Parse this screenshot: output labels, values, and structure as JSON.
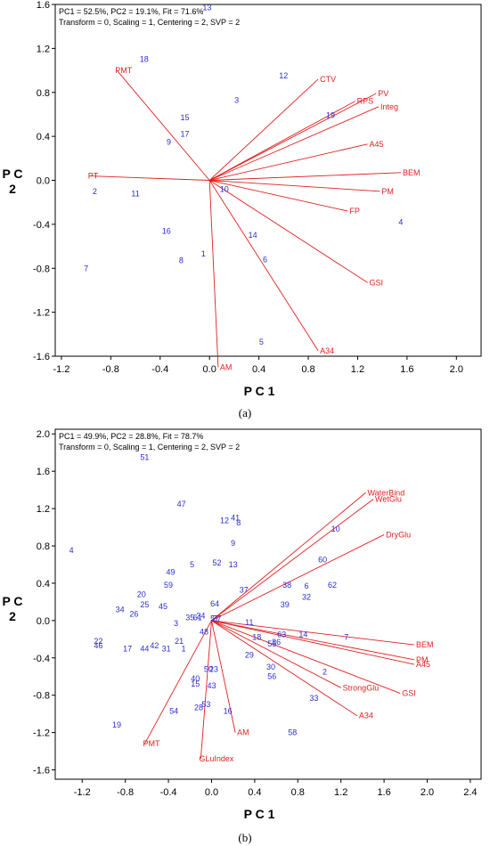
{
  "chart_data": [
    {
      "type": "scatter",
      "panel_label": "(a)",
      "stats": "PC1 = 52.5%, PC2 = 19.1%, Fit = 71.6%",
      "settings": "Transform = 0, Scaling = 1, Centering = 2, SVP = 2",
      "xlabel": "P C 1",
      "ylabel": "P C 2",
      "xlim": [
        -1.25,
        2.2
      ],
      "ylim": [
        -1.6,
        1.6
      ],
      "xticks": [
        -1.2,
        -0.8,
        -0.4,
        0.0,
        0.4,
        0.8,
        1.2,
        1.6,
        2.0
      ],
      "xtick_labels": [
        "-1.2",
        "-0.8",
        "-0.4",
        "0.0",
        "0.4",
        "0.8",
        "1.2",
        "1.6",
        "2.0"
      ],
      "yticks": [
        -1.6,
        -1.2,
        -0.8,
        -0.4,
        0.0,
        0.4,
        0.8,
        1.2,
        1.6
      ],
      "ytick_labels": [
        "-1.6",
        "-1.2",
        "-0.8",
        "-0.4",
        "0.0",
        "0.4",
        "0.8",
        "1.2",
        "1.6"
      ],
      "vectors": [
        {
          "label": "CTV",
          "x": 0.88,
          "y": 0.92
        },
        {
          "label": "RPS",
          "x": 1.18,
          "y": 0.72
        },
        {
          "label": "PV",
          "x": 1.35,
          "y": 0.79
        },
        {
          "label": "Integ",
          "x": 1.37,
          "y": 0.67
        },
        {
          "label": "A45",
          "x": 1.28,
          "y": 0.33
        },
        {
          "label": "BEM",
          "x": 1.55,
          "y": 0.07
        },
        {
          "label": "PM",
          "x": 1.38,
          "y": -0.1
        },
        {
          "label": "FP",
          "x": 1.12,
          "y": -0.28
        },
        {
          "label": "GSI",
          "x": 1.28,
          "y": -0.93
        },
        {
          "label": "A34",
          "x": 0.88,
          "y": -1.55
        },
        {
          "label": "AM",
          "x": 0.07,
          "y": -1.7
        },
        {
          "label": "PT",
          "x": -0.97,
          "y": 0.04
        },
        {
          "label": "PMT",
          "x": -0.75,
          "y": 1.0
        }
      ],
      "observations": [
        {
          "label": "1",
          "x": -0.05,
          "y": -0.67
        },
        {
          "label": "2",
          "x": -0.93,
          "y": -0.1
        },
        {
          "label": "3",
          "x": 0.22,
          "y": 0.73
        },
        {
          "label": "4",
          "x": 1.55,
          "y": -0.38
        },
        {
          "label": "5",
          "x": 0.42,
          "y": -1.47
        },
        {
          "label": "6",
          "x": 0.45,
          "y": -0.72
        },
        {
          "label": "7",
          "x": -1.0,
          "y": -0.8
        },
        {
          "label": "8",
          "x": -0.23,
          "y": -0.73
        },
        {
          "label": "9",
          "x": -0.33,
          "y": 0.35
        },
        {
          "label": "10",
          "x": 0.12,
          "y": -0.08
        },
        {
          "label": "11",
          "x": -0.6,
          "y": -0.12
        },
        {
          "label": "12",
          "x": 0.6,
          "y": 0.95
        },
        {
          "label": "13",
          "x": -0.02,
          "y": 1.57
        },
        {
          "label": "14",
          "x": 0.35,
          "y": -0.5
        },
        {
          "label": "15",
          "x": -0.2,
          "y": 0.57
        },
        {
          "label": "16",
          "x": -0.35,
          "y": -0.46
        },
        {
          "label": "17",
          "x": -0.2,
          "y": 0.42
        },
        {
          "label": "18",
          "x": -0.53,
          "y": 1.1
        },
        {
          "label": "19",
          "x": 0.98,
          "y": 0.59
        }
      ]
    },
    {
      "type": "scatter",
      "panel_label": "(b)",
      "stats": "PC1 = 49.9%, PC2 = 28.8%, Fit = 78.7%",
      "settings": "Transform = 0, Scaling = 1, Centering = 2, SVP = 2",
      "xlabel": "P C 1",
      "ylabel": "P C 2",
      "xlim": [
        -1.45,
        2.5
      ],
      "ylim": [
        -1.7,
        2.05
      ],
      "xticks": [
        -1.2,
        -0.8,
        -0.4,
        0.0,
        0.4,
        0.8,
        1.2,
        1.6,
        2.0,
        2.4
      ],
      "xtick_labels": [
        "-1.2",
        "-0.8",
        "-0.4",
        "0.0",
        "0.4",
        "0.8",
        "1.2",
        "1.6",
        "2.0",
        "2.4"
      ],
      "yticks": [
        -1.6,
        -1.2,
        -0.8,
        -0.4,
        0.0,
        0.4,
        0.8,
        1.2,
        1.6,
        2.0
      ],
      "ytick_labels": [
        "-1.6",
        "-1.2",
        "-0.8",
        "-0.4",
        "0.0",
        "0.4",
        "0.8",
        "1.2",
        "1.6",
        "2.0"
      ],
      "vectors": [
        {
          "label": "WaterBind",
          "x": 1.43,
          "y": 1.37
        },
        {
          "label": "WetGlu",
          "x": 1.5,
          "y": 1.3
        },
        {
          "label": "DryGlu",
          "x": 1.6,
          "y": 0.92
        },
        {
          "label": "BEM",
          "x": 1.88,
          "y": -0.26
        },
        {
          "label": "PM",
          "x": 1.88,
          "y": -0.42
        },
        {
          "label": "A45",
          "x": 1.88,
          "y": -0.47
        },
        {
          "label": "StrongGlu",
          "x": 1.2,
          "y": -0.72
        },
        {
          "label": "GSI",
          "x": 1.75,
          "y": -0.78
        },
        {
          "label": "A34",
          "x": 1.35,
          "y": -1.02
        },
        {
          "label": "AM",
          "x": 0.22,
          "y": -1.2
        },
        {
          "label": "GLuIndex",
          "x": -0.1,
          "y": -1.48
        },
        {
          "label": "PMT",
          "x": -0.62,
          "y": -1.32
        }
      ],
      "observations": [
        {
          "label": "1",
          "x": -0.26,
          "y": -0.3
        },
        {
          "label": "2",
          "x": 1.05,
          "y": -0.55
        },
        {
          "label": "3",
          "x": -0.33,
          "y": -0.03
        },
        {
          "label": "4",
          "x": -1.3,
          "y": 0.75
        },
        {
          "label": "5",
          "x": -0.18,
          "y": 0.6
        },
        {
          "label": "6",
          "x": 0.88,
          "y": 0.37
        },
        {
          "label": "7",
          "x": 1.25,
          "y": -0.18
        },
        {
          "label": "8",
          "x": 0.25,
          "y": 1.05
        },
        {
          "label": "9",
          "x": 0.2,
          "y": 0.83
        },
        {
          "label": "10",
          "x": 1.15,
          "y": 0.98
        },
        {
          "label": "11",
          "x": 0.35,
          "y": -0.02
        },
        {
          "label": "12",
          "x": 0.12,
          "y": 1.07
        },
        {
          "label": "13",
          "x": 0.2,
          "y": 0.6
        },
        {
          "label": "14",
          "x": 0.85,
          "y": -0.15
        },
        {
          "label": "15",
          "x": -0.15,
          "y": -0.68
        },
        {
          "label": "16",
          "x": 0.15,
          "y": -0.97
        },
        {
          "label": "17",
          "x": -0.78,
          "y": -0.3
        },
        {
          "label": "18",
          "x": 0.42,
          "y": -0.18
        },
        {
          "label": "19",
          "x": -0.88,
          "y": -1.12
        },
        {
          "label": "20",
          "x": -0.65,
          "y": 0.28
        },
        {
          "label": "21",
          "x": -0.3,
          "y": -0.22
        },
        {
          "label": "22",
          "x": -1.05,
          "y": -0.22
        },
        {
          "label": "23",
          "x": 0.02,
          "y": -0.52
        },
        {
          "label": "24",
          "x": -0.1,
          "y": 0.05
        },
        {
          "label": "25",
          "x": -0.62,
          "y": 0.17
        },
        {
          "label": "26",
          "x": -0.72,
          "y": 0.07
        },
        {
          "label": "27",
          "x": 0.05,
          "y": 0.02
        },
        {
          "label": "28",
          "x": -0.12,
          "y": -0.93
        },
        {
          "label": "29",
          "x": 0.35,
          "y": -0.37
        },
        {
          "label": "30",
          "x": 0.55,
          "y": -0.5
        },
        {
          "label": "31",
          "x": -0.42,
          "y": -0.3
        },
        {
          "label": "32",
          "x": 0.88,
          "y": 0.25
        },
        {
          "label": "33",
          "x": 0.95,
          "y": -0.83
        },
        {
          "label": "34",
          "x": -0.85,
          "y": 0.12
        },
        {
          "label": "35",
          "x": -0.2,
          "y": 0.03
        },
        {
          "label": "36",
          "x": 0.6,
          "y": -0.23
        },
        {
          "label": "37",
          "x": 0.3,
          "y": 0.33
        },
        {
          "label": "38",
          "x": 0.7,
          "y": 0.38
        },
        {
          "label": "39",
          "x": 0.68,
          "y": 0.17
        },
        {
          "label": "40",
          "x": -0.15,
          "y": -0.62
        },
        {
          "label": "41",
          "x": 0.22,
          "y": 1.1
        },
        {
          "label": "42",
          "x": -0.53,
          "y": -0.27
        },
        {
          "label": "43",
          "x": 0.0,
          "y": -0.7
        },
        {
          "label": "44",
          "x": -0.62,
          "y": -0.3
        },
        {
          "label": "45",
          "x": -0.45,
          "y": 0.15
        },
        {
          "label": "46",
          "x": -1.05,
          "y": -0.27
        },
        {
          "label": "47",
          "x": -0.28,
          "y": 1.25
        },
        {
          "label": "48",
          "x": -0.07,
          "y": -0.12
        },
        {
          "label": "49",
          "x": -0.38,
          "y": 0.52
        },
        {
          "label": "50",
          "x": -0.03,
          "y": -0.52
        },
        {
          "label": "51",
          "x": -0.62,
          "y": 1.75
        },
        {
          "label": "52",
          "x": 0.05,
          "y": 0.62
        },
        {
          "label": "53",
          "x": -0.05,
          "y": -0.9
        },
        {
          "label": "54",
          "x": -0.35,
          "y": -0.97
        },
        {
          "label": "55",
          "x": 0.56,
          "y": -0.25
        },
        {
          "label": "56",
          "x": 0.56,
          "y": -0.6
        },
        {
          "label": "57",
          "x": 0.03,
          "y": 0.02
        },
        {
          "label": "58",
          "x": 0.75,
          "y": -1.2
        },
        {
          "label": "59",
          "x": -0.4,
          "y": 0.38
        },
        {
          "label": "60",
          "x": 1.03,
          "y": 0.65
        },
        {
          "label": "61",
          "x": -0.13,
          "y": 0.03
        },
        {
          "label": "62",
          "x": 1.12,
          "y": 0.38
        },
        {
          "label": "63",
          "x": 0.65,
          "y": -0.15
        },
        {
          "label": "64",
          "x": 0.03,
          "y": 0.18
        }
      ]
    }
  ]
}
